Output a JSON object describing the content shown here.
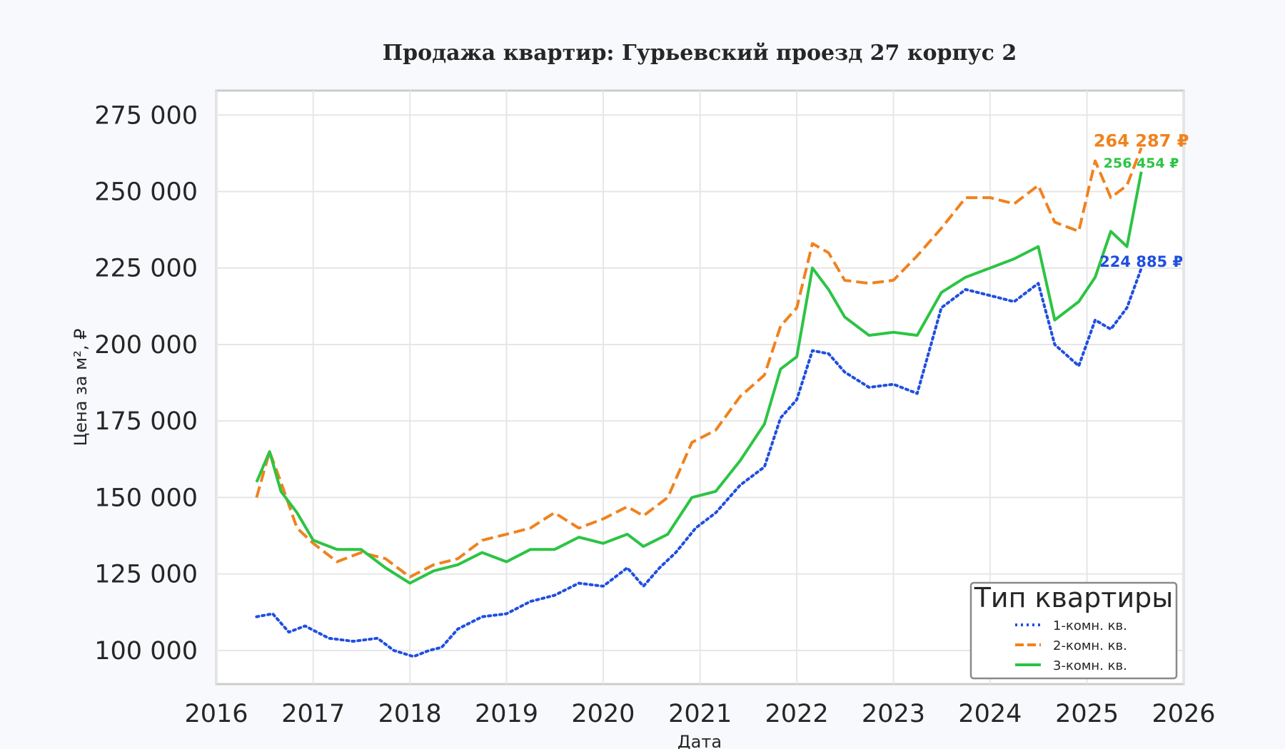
{
  "chart_data": {
    "type": "line",
    "title": "Продажа квартир: Гурьевский проезд 27 корпус 2",
    "xlabel": "Дата",
    "ylabel": "Цена за м², ₽",
    "xlim": [
      "2016-01-01",
      "2026-01-01"
    ],
    "ylim": [
      89000,
      283000
    ],
    "grid": true,
    "x_ticks": [
      "2016",
      "2017",
      "2018",
      "2019",
      "2020",
      "2021",
      "2022",
      "2023",
      "2024",
      "2025",
      "2026"
    ],
    "y_ticks": [
      100000,
      125000,
      150000,
      175000,
      200000,
      225000,
      250000,
      275000
    ],
    "y_tick_labels": [
      "100 000",
      "125 000",
      "150 000",
      "175 000",
      "200 000",
      "225 000",
      "250 000",
      "275 000"
    ],
    "legend": {
      "title": "Тип квартиры",
      "placement": "bottom-right"
    },
    "series": [
      {
        "name": "1-комн. кв.",
        "color": "#1f4fe0",
        "style": "dotted",
        "end_label": "224 885 ₽",
        "points": [
          [
            "2016-06-01",
            111000
          ],
          [
            "2016-08-01",
            112000
          ],
          [
            "2016-10-01",
            106000
          ],
          [
            "2016-12-01",
            108000
          ],
          [
            "2017-03-01",
            104000
          ],
          [
            "2017-06-01",
            103000
          ],
          [
            "2017-09-01",
            104000
          ],
          [
            "2017-11-01",
            100000
          ],
          [
            "2018-01-15",
            98000
          ],
          [
            "2018-03-15",
            100000
          ],
          [
            "2018-05-01",
            101000
          ],
          [
            "2018-07-01",
            107000
          ],
          [
            "2018-10-01",
            111000
          ],
          [
            "2019-01-01",
            112000
          ],
          [
            "2019-04-01",
            116000
          ],
          [
            "2019-07-01",
            118000
          ],
          [
            "2019-10-01",
            122000
          ],
          [
            "2020-01-01",
            121000
          ],
          [
            "2020-04-01",
            127000
          ],
          [
            "2020-06-01",
            121000
          ],
          [
            "2020-08-01",
            127000
          ],
          [
            "2020-10-01",
            132000
          ],
          [
            "2020-12-15",
            140000
          ],
          [
            "2021-03-01",
            145000
          ],
          [
            "2021-06-01",
            154000
          ],
          [
            "2021-09-01",
            160000
          ],
          [
            "2021-11-01",
            176000
          ],
          [
            "2022-01-01",
            182000
          ],
          [
            "2022-03-01",
            198000
          ],
          [
            "2022-05-01",
            197000
          ],
          [
            "2022-07-01",
            191000
          ],
          [
            "2022-10-01",
            186000
          ],
          [
            "2023-01-01",
            187000
          ],
          [
            "2023-04-01",
            184000
          ],
          [
            "2023-07-01",
            212000
          ],
          [
            "2023-10-01",
            218000
          ],
          [
            "2024-01-01",
            216000
          ],
          [
            "2024-04-01",
            214000
          ],
          [
            "2024-07-01",
            220000
          ],
          [
            "2024-09-01",
            200000
          ],
          [
            "2024-12-01",
            193000
          ],
          [
            "2025-02-01",
            208000
          ],
          [
            "2025-04-01",
            205000
          ],
          [
            "2025-06-01",
            212000
          ],
          [
            "2025-07-25",
            224885
          ]
        ]
      },
      {
        "name": "2-комн. кв.",
        "color": "#f0821e",
        "style": "dashed",
        "end_label": "264 287 ₽",
        "points": [
          [
            "2016-06-01",
            150000
          ],
          [
            "2016-07-20",
            165000
          ],
          [
            "2016-09-01",
            155000
          ],
          [
            "2016-11-01",
            140000
          ],
          [
            "2017-01-01",
            135000
          ],
          [
            "2017-04-01",
            129000
          ],
          [
            "2017-07-01",
            132000
          ],
          [
            "2017-10-01",
            130000
          ],
          [
            "2018-01-01",
            124000
          ],
          [
            "2018-04-01",
            128000
          ],
          [
            "2018-07-01",
            130000
          ],
          [
            "2018-10-01",
            136000
          ],
          [
            "2019-01-01",
            138000
          ],
          [
            "2019-04-01",
            140000
          ],
          [
            "2019-07-01",
            145000
          ],
          [
            "2019-10-01",
            140000
          ],
          [
            "2020-01-01",
            143000
          ],
          [
            "2020-04-01",
            147000
          ],
          [
            "2020-06-01",
            144000
          ],
          [
            "2020-09-01",
            150000
          ],
          [
            "2020-12-01",
            168000
          ],
          [
            "2021-03-01",
            172000
          ],
          [
            "2021-06-01",
            183000
          ],
          [
            "2021-09-01",
            190000
          ],
          [
            "2021-11-01",
            206000
          ],
          [
            "2022-01-01",
            212000
          ],
          [
            "2022-03-01",
            233000
          ],
          [
            "2022-05-01",
            230000
          ],
          [
            "2022-07-01",
            221000
          ],
          [
            "2022-10-01",
            220000
          ],
          [
            "2023-01-01",
            221000
          ],
          [
            "2023-04-01",
            229000
          ],
          [
            "2023-07-01",
            238000
          ],
          [
            "2023-10-01",
            248000
          ],
          [
            "2024-01-01",
            248000
          ],
          [
            "2024-04-01",
            246000
          ],
          [
            "2024-07-01",
            252000
          ],
          [
            "2024-09-01",
            240000
          ],
          [
            "2024-12-01",
            237000
          ],
          [
            "2025-02-01",
            260000
          ],
          [
            "2025-04-01",
            248000
          ],
          [
            "2025-06-01",
            252000
          ],
          [
            "2025-07-25",
            264287
          ]
        ]
      },
      {
        "name": "3-комн. кв.",
        "color": "#2cc444",
        "style": "solid",
        "end_label": "256 454 ₽",
        "points": [
          [
            "2016-06-01",
            155000
          ],
          [
            "2016-07-20",
            165000
          ],
          [
            "2016-09-01",
            152000
          ],
          [
            "2016-11-01",
            145000
          ],
          [
            "2017-01-01",
            136000
          ],
          [
            "2017-04-01",
            133000
          ],
          [
            "2017-07-01",
            133000
          ],
          [
            "2017-10-01",
            127000
          ],
          [
            "2018-01-01",
            122000
          ],
          [
            "2018-04-01",
            126000
          ],
          [
            "2018-07-01",
            128000
          ],
          [
            "2018-10-01",
            132000
          ],
          [
            "2019-01-01",
            129000
          ],
          [
            "2019-04-01",
            133000
          ],
          [
            "2019-07-01",
            133000
          ],
          [
            "2019-10-01",
            137000
          ],
          [
            "2020-01-01",
            135000
          ],
          [
            "2020-04-01",
            138000
          ],
          [
            "2020-06-01",
            134000
          ],
          [
            "2020-09-01",
            138000
          ],
          [
            "2020-12-01",
            150000
          ],
          [
            "2021-03-01",
            152000
          ],
          [
            "2021-06-01",
            162000
          ],
          [
            "2021-09-01",
            174000
          ],
          [
            "2021-11-01",
            192000
          ],
          [
            "2022-01-01",
            196000
          ],
          [
            "2022-03-01",
            225000
          ],
          [
            "2022-05-01",
            218000
          ],
          [
            "2022-07-01",
            209000
          ],
          [
            "2022-10-01",
            203000
          ],
          [
            "2023-01-01",
            204000
          ],
          [
            "2023-04-01",
            203000
          ],
          [
            "2023-07-01",
            217000
          ],
          [
            "2023-10-01",
            222000
          ],
          [
            "2024-01-01",
            225000
          ],
          [
            "2024-04-01",
            228000
          ],
          [
            "2024-07-01",
            232000
          ],
          [
            "2024-09-01",
            208000
          ],
          [
            "2024-12-01",
            214000
          ],
          [
            "2025-02-01",
            222000
          ],
          [
            "2025-04-01",
            237000
          ],
          [
            "2025-06-01",
            232000
          ],
          [
            "2025-07-25",
            256454
          ]
        ]
      }
    ]
  }
}
